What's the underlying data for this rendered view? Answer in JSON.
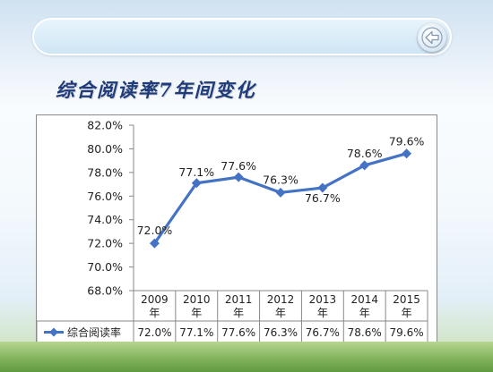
{
  "slide": {
    "title": "综合阅读率7年间变化"
  },
  "icons": {
    "back": "back-arrow-icon",
    "legend_marker": "diamond-marker-icon"
  },
  "colors": {
    "series": "#4472c4",
    "title": "#1f3b7a",
    "axis": "#888888"
  },
  "chart_data": {
    "type": "line",
    "title": "",
    "xlabel": "",
    "ylabel": "",
    "categories": [
      "2009年",
      "2010年",
      "2011年",
      "2012年",
      "2013年",
      "2014年",
      "2015年"
    ],
    "series": [
      {
        "name": "综合阅读率",
        "values": [
          72.0,
          77.1,
          77.6,
          76.3,
          76.7,
          78.6,
          79.6
        ],
        "labels": [
          "72.0%",
          "77.1%",
          "77.6%",
          "76.3%",
          "76.7%",
          "78.6%",
          "79.6%"
        ]
      }
    ],
    "ylim": [
      68.0,
      82.0
    ],
    "ytick_step": 2.0,
    "yticks": [
      "68.0%",
      "70.0%",
      "72.0%",
      "74.0%",
      "76.0%",
      "78.0%",
      "80.0%",
      "82.0%"
    ],
    "grid": false,
    "legend": "data-table-left",
    "data_table": true
  }
}
